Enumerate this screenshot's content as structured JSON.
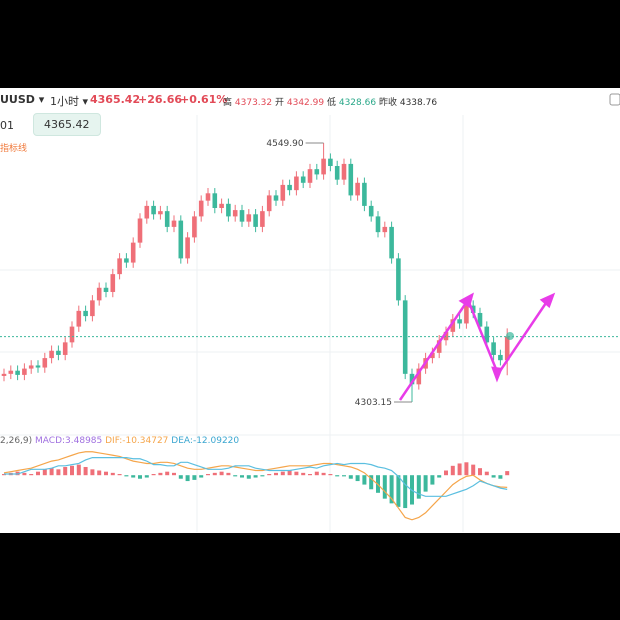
{
  "header": {
    "symbol": "UUSD",
    "interval": "1小时",
    "price": "4365.42",
    "change": "+26.66",
    "change_pct": "+0.61%",
    "high_label": "高",
    "high": "4373.32",
    "open_label": "开",
    "open": "4342.99",
    "low_label": "低",
    "low": "4328.66",
    "prev_close_label": "昨收",
    "prev_close": "4338.76"
  },
  "toolbar": {
    "left": "01",
    "price_box": "4365.42",
    "indicator_label": "指标线"
  },
  "macd_legend": {
    "params": "2,26,9)",
    "macd": "MACD:3.48985",
    "dif": "DIF:-10.34727",
    "dea": "DEA:-12.09220"
  },
  "chart_data": [
    {
      "type": "candlestick",
      "up_color": "#ef6f78",
      "down_color": "#3cb89c",
      "ylim": [
        4276.5,
        4576.6
      ],
      "open": [
        4328,
        4330,
        4333,
        4329,
        4335,
        4338,
        4336,
        4345,
        4352,
        4348,
        4360,
        4375,
        4390,
        4385,
        4400,
        4412,
        4408,
        4425,
        4440,
        4436,
        4455,
        4478,
        4490,
        4482,
        4485,
        4470,
        4476,
        4440,
        4460,
        4480,
        4495,
        4502,
        4488,
        4492,
        4480,
        4486,
        4475,
        4482,
        4470,
        4485,
        4500,
        4495,
        4510,
        4505,
        4518,
        4512,
        4525,
        4520,
        4535,
        4528,
        4515,
        4530,
        4500,
        4512,
        4490,
        4480,
        4465,
        4470,
        4440,
        4400,
        4330,
        4320,
        4335,
        4345,
        4350,
        4362,
        4370,
        4382,
        4378,
        4395,
        4388,
        4375,
        4360,
        4348,
        4342.99
      ],
      "high": [
        4335,
        4338,
        4338,
        4340,
        4343,
        4343,
        4350,
        4357,
        4357,
        4365,
        4380,
        4395,
        4395,
        4405,
        4417,
        4417,
        4430,
        4445,
        4445,
        4460,
        4483,
        4495,
        4495,
        4490,
        4490,
        4481,
        4481,
        4465,
        4485,
        4500,
        4507,
        4507,
        4497,
        4497,
        4491,
        4491,
        4487,
        4487,
        4490,
        4505,
        4505,
        4515,
        4515,
        4523,
        4523,
        4530,
        4530,
        4549.9,
        4540,
        4533,
        4535,
        4535,
        4517,
        4517,
        4495,
        4485,
        4475,
        4475,
        4445,
        4405,
        4335,
        4340,
        4350,
        4355,
        4367,
        4375,
        4387,
        4387,
        4400,
        4400,
        4393,
        4380,
        4365,
        4353,
        4373.32
      ],
      "low": [
        4323,
        4325,
        4324,
        4324,
        4330,
        4331,
        4331,
        4340,
        4343,
        4343,
        4355,
        4370,
        4380,
        4380,
        4395,
        4403,
        4403,
        4420,
        4431,
        4431,
        4450,
        4473,
        4477,
        4477,
        4465,
        4465,
        4435,
        4435,
        4455,
        4475,
        4490,
        4483,
        4483,
        4475,
        4475,
        4470,
        4470,
        4465,
        4465,
        4480,
        4490,
        4490,
        4500,
        4500,
        4507,
        4507,
        4515,
        4515,
        4523,
        4510,
        4510,
        4495,
        4495,
        4485,
        4475,
        4460,
        4460,
        4435,
        4395,
        4325,
        4303.15,
        4315,
        4330,
        4340,
        4345,
        4357,
        4365,
        4373,
        4373,
        4383,
        4370,
        4355,
        4343,
        4338,
        4328.66
      ],
      "close": [
        4330,
        4333,
        4329,
        4335,
        4338,
        4336,
        4345,
        4352,
        4348,
        4360,
        4375,
        4390,
        4385,
        4400,
        4412,
        4408,
        4425,
        4440,
        4436,
        4455,
        4478,
        4490,
        4482,
        4485,
        4470,
        4476,
        4440,
        4460,
        4480,
        4495,
        4502,
        4488,
        4492,
        4480,
        4486,
        4475,
        4482,
        4470,
        4485,
        4500,
        4495,
        4510,
        4505,
        4518,
        4512,
        4525,
        4520,
        4535,
        4528,
        4515,
        4530,
        4500,
        4512,
        4490,
        4480,
        4465,
        4470,
        4440,
        4400,
        4330,
        4320,
        4335,
        4345,
        4350,
        4362,
        4370,
        4382,
        4378,
        4395,
        4388,
        4375,
        4360,
        4348,
        4343,
        4365.42
      ],
      "annotations": [
        {
          "value": 4549.9,
          "label": "4549.90",
          "index": 47
        },
        {
          "value": 4303.15,
          "label": "4303.15",
          "index": 60
        }
      ]
    },
    {
      "type": "macd",
      "ylim": [
        -45,
        30
      ],
      "up_color": "#ef6f78",
      "down_color": "#3cb89c",
      "series": [
        {
          "name": "DIF",
          "color": "#f5a54a",
          "values": [
            2,
            3,
            4,
            5,
            6,
            8,
            10,
            12,
            13,
            15,
            17,
            19,
            20,
            20,
            19,
            18,
            17,
            16,
            14,
            12,
            11,
            10,
            10,
            11,
            11,
            10,
            8,
            6,
            5,
            5,
            6,
            7,
            8,
            8,
            7,
            6,
            5,
            4,
            4,
            5,
            6,
            7,
            8,
            8,
            8,
            8,
            9,
            10,
            10,
            9,
            8,
            7,
            5,
            2,
            -3,
            -8,
            -14,
            -20,
            -28,
            -36,
            -38,
            -36,
            -32,
            -26,
            -20,
            -14,
            -8,
            -4,
            -1,
            0,
            -4,
            -7,
            -9,
            -10,
            -10.34727
          ]
        },
        {
          "name": "DEA",
          "color": "#5bbfe0",
          "values": [
            1,
            1,
            1,
            3,
            5,
            5,
            5,
            6,
            8,
            8,
            9,
            10,
            13,
            15,
            15,
            15,
            15,
            15,
            15,
            14,
            14,
            12,
            9,
            9,
            8,
            8,
            11,
            11,
            9,
            7,
            5,
            5,
            5,
            6,
            8,
            8,
            8,
            6,
            5,
            4,
            4,
            4,
            4,
            5,
            6,
            7,
            6,
            8,
            9,
            10,
            9,
            10,
            10,
            10,
            9,
            7,
            6,
            4,
            -1,
            -8,
            -13,
            -16,
            -18,
            -18,
            -18,
            -18,
            -16,
            -14,
            -12,
            -9,
            -5,
            -7,
            -9,
            -11,
            -12.0922
          ]
        }
      ],
      "values": [
        1,
        2,
        3,
        2,
        1,
        3,
        5,
        6,
        5,
        7,
        8,
        9,
        7,
        5,
        4,
        3,
        2,
        1,
        -1,
        -2,
        -3,
        -2,
        1,
        2,
        3,
        2,
        -3,
        -5,
        -4,
        -2,
        1,
        2,
        3,
        2,
        -1,
        -2,
        -3,
        -2,
        -1,
        1,
        2,
        3,
        4,
        3,
        2,
        1,
        3,
        2,
        1,
        -1,
        -1,
        -3,
        -5,
        -8,
        -12,
        -15,
        -20,
        -24,
        -27,
        -28,
        -25,
        -20,
        -14,
        -8,
        -2,
        4,
        8,
        10,
        11,
        9,
        6,
        3,
        -2,
        -3,
        3.48985
      ]
    }
  ]
}
